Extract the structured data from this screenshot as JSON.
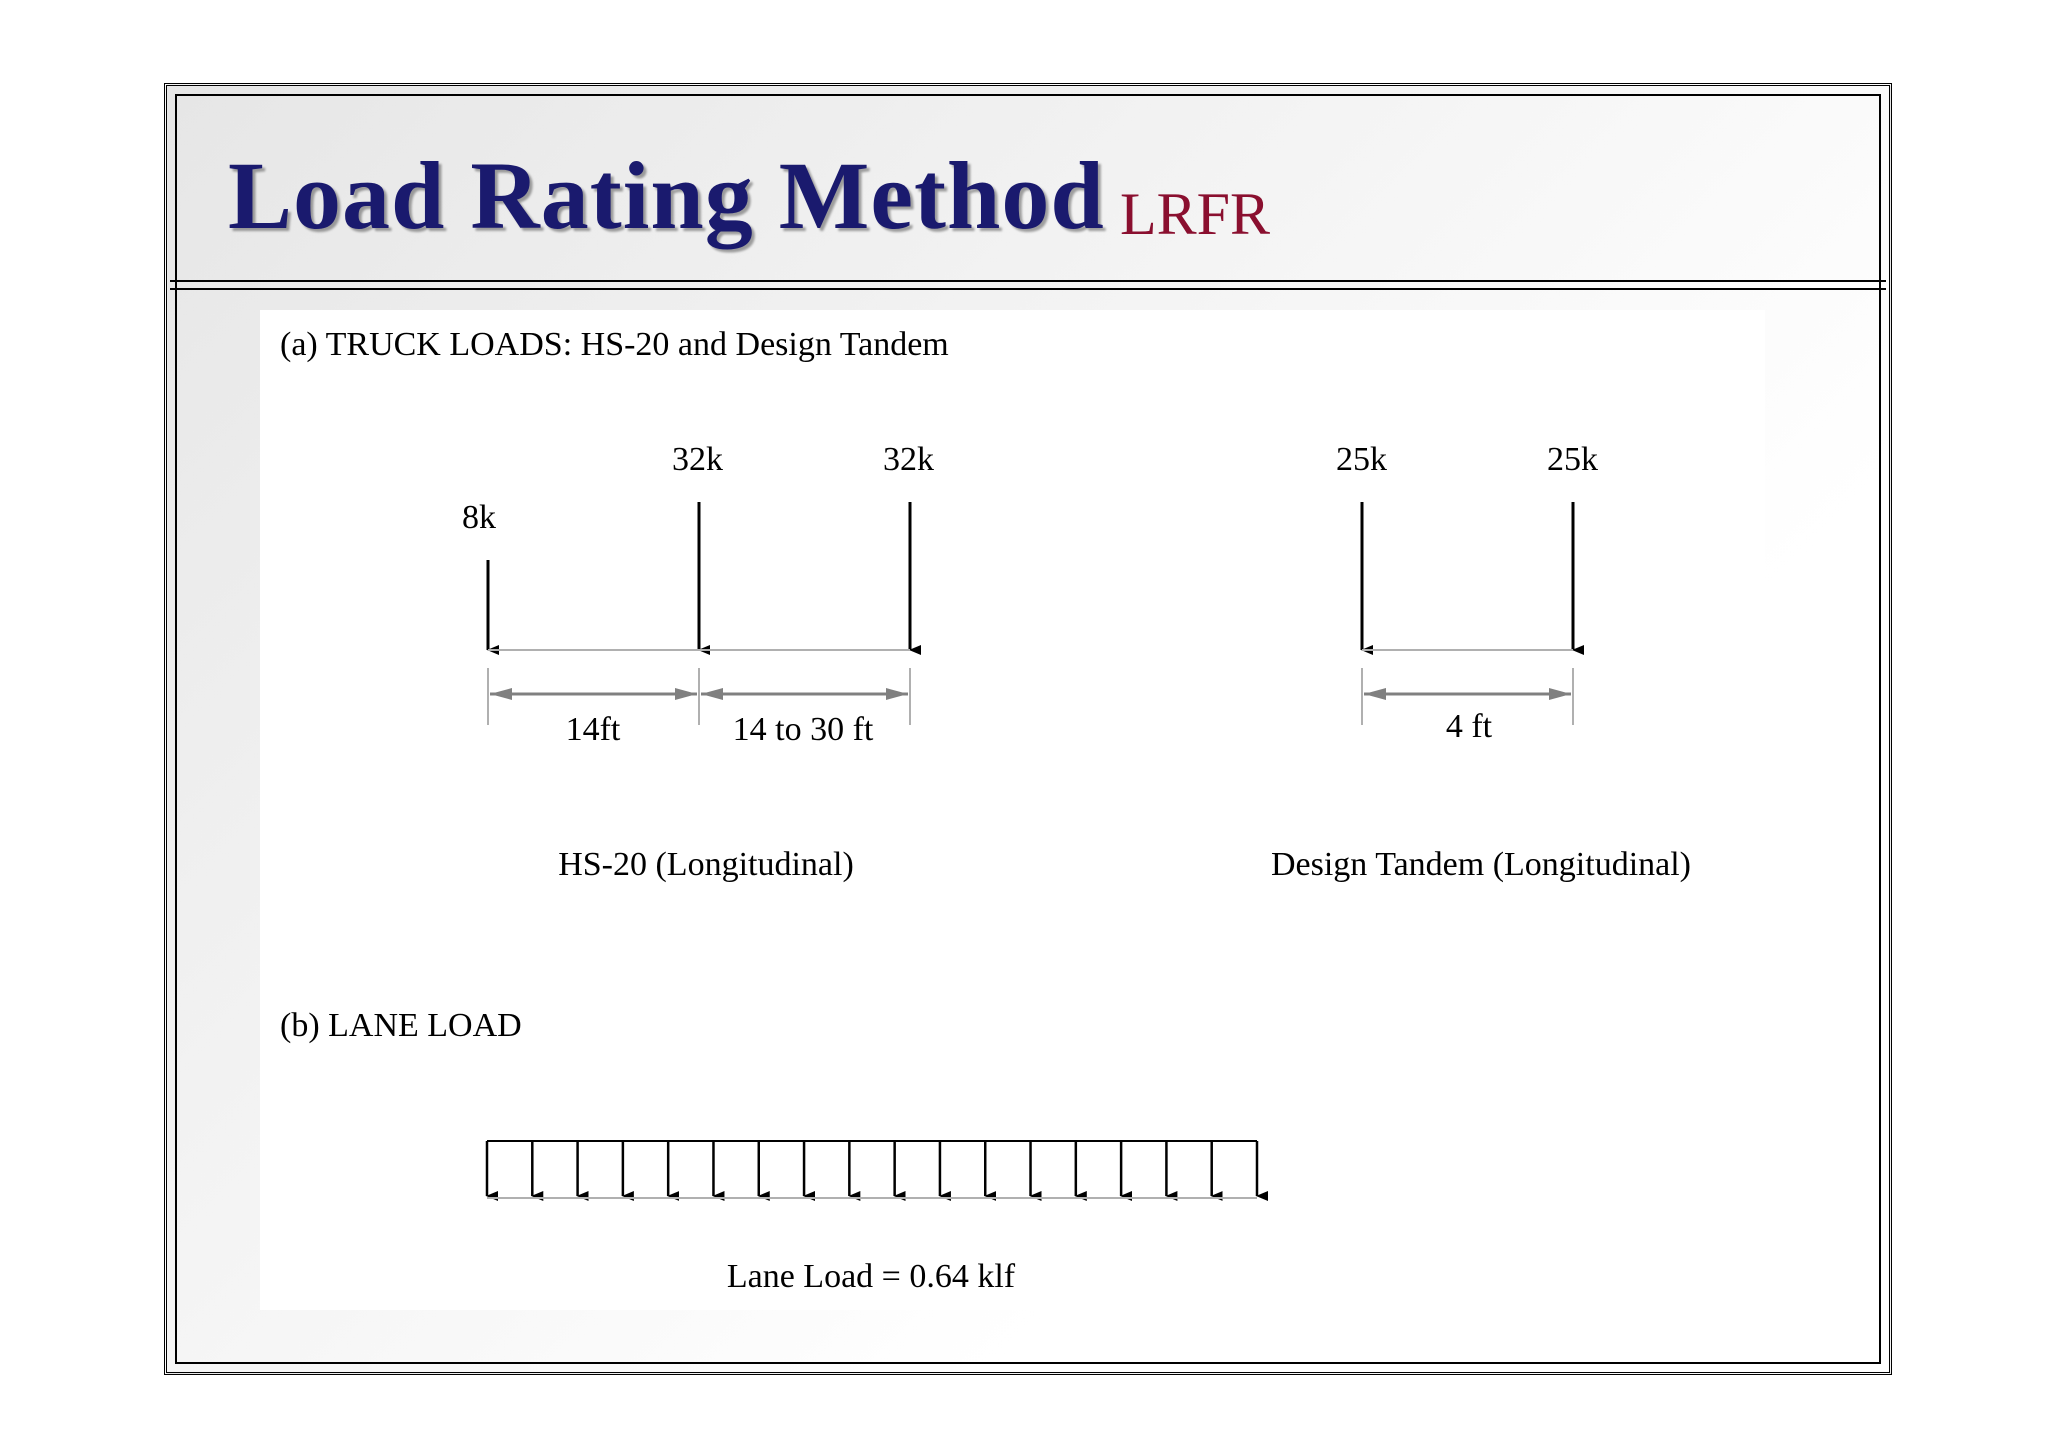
{
  "header": {
    "title": "Load Rating Method",
    "subtitle": "LRFR"
  },
  "section_a": {
    "heading": "(a) TRUCK LOADS: HS-20 and Design Tandem",
    "hs20": {
      "loads": [
        "8k",
        "32k",
        "32k"
      ],
      "spacings": [
        "14ft",
        "14 to 30 ft"
      ],
      "caption": "HS-20 (Longitudinal)"
    },
    "tandem": {
      "loads": [
        "25k",
        "25k"
      ],
      "spacing": "4 ft",
      "caption": "Design Tandem (Longitudinal)"
    }
  },
  "section_b": {
    "heading": "(b) LANE LOAD",
    "caption": "Lane Load = 0.64 klf",
    "arrow_count": 18
  },
  "colors": {
    "title": "#1a1a6e",
    "subtitle": "#8a0f2f",
    "dimension": "#808080"
  }
}
